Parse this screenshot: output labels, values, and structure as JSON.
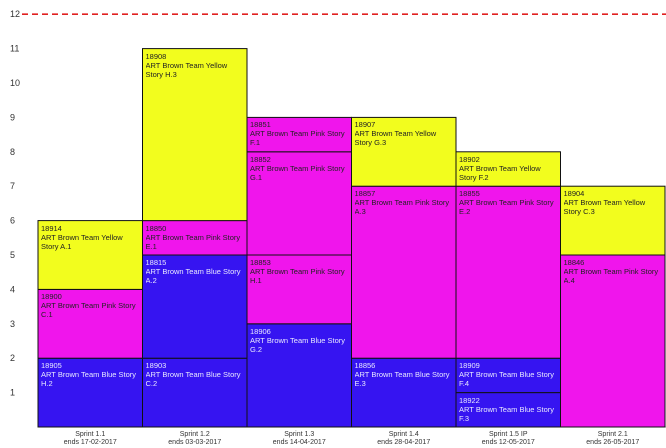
{
  "chart_data": {
    "type": "bar",
    "stacked": true,
    "ylim": [
      0,
      12
    ],
    "yticks": [
      "1",
      "2",
      "3",
      "4",
      "5",
      "6",
      "7",
      "8",
      "9",
      "10",
      "11",
      "12"
    ],
    "reference_line": {
      "value": 12,
      "color": "#e02020",
      "style": "dashed"
    },
    "colors": {
      "yellow": "#f2fd1e",
      "pink": "#f015ec",
      "blue": "#3614f1"
    },
    "categories": [
      {
        "label": "Sprint 1.1",
        "sublabel": "ends 17-02-2017",
        "segments": [
          {
            "id": "18905",
            "text": "ART Brown Team Blue Story H.2",
            "value": 2,
            "color": "blue"
          },
          {
            "id": "18900",
            "text": "ART Brown Team Pink Story C.1",
            "value": 2,
            "color": "pink"
          },
          {
            "id": "18914",
            "text": "ART Brown Team Yellow Story A.1",
            "value": 2,
            "color": "yellow"
          }
        ]
      },
      {
        "label": "Sprint 1.2",
        "sublabel": "ends 03-03-2017",
        "segments": [
          {
            "id": "18903",
            "text": "ART Brown Team Blue Story C.2",
            "value": 2,
            "color": "blue"
          },
          {
            "id": "18815",
            "text": "ART Brown Team Blue Story A.2",
            "value": 3,
            "color": "blue"
          },
          {
            "id": "18850",
            "text": "ART Brown Team Pink Story E.1",
            "value": 1,
            "color": "pink"
          },
          {
            "id": "18908",
            "text": "ART Brown Team Yellow Story H.3",
            "value": 5,
            "color": "yellow"
          }
        ]
      },
      {
        "label": "Sprint 1.3",
        "sublabel": "ends 14-04-2017",
        "segments": [
          {
            "id": "18906",
            "text": "ART Brown Team Blue Story G.2",
            "value": 3,
            "color": "blue"
          },
          {
            "id": "18853",
            "text": "ART Brown Team Pink Story H.1",
            "value": 2,
            "color": "pink"
          },
          {
            "id": "18852",
            "text": "ART Brown Team Pink Story G.1",
            "value": 3,
            "color": "pink"
          },
          {
            "id": "18851",
            "text": "ART Brown Team Pink Story F.1",
            "value": 1,
            "color": "pink"
          }
        ]
      },
      {
        "label": "Sprint 1.4",
        "sublabel": "ends 28-04-2017",
        "segments": [
          {
            "id": "18856",
            "text": "ART Brown Team Blue Story E.3",
            "value": 2,
            "color": "blue"
          },
          {
            "id": "18857",
            "text": "ART Brown Team Pink Story A.3",
            "value": 5,
            "color": "pink"
          },
          {
            "id": "18907",
            "text": "ART Brown Team Yellow Story G.3",
            "value": 2,
            "color": "yellow"
          }
        ]
      },
      {
        "label": "Sprint 1.5 IP",
        "sublabel": "ends 12-05-2017",
        "segments": [
          {
            "id": "18922",
            "text": "ART Brown Team Blue Story F.3",
            "value": 1,
            "color": "blue"
          },
          {
            "id": "18909",
            "text": "ART Brown Team Blue Story F.4",
            "value": 1,
            "color": "blue"
          },
          {
            "id": "18855",
            "text": "ART Brown Team Pink Story E.2",
            "value": 5,
            "color": "pink"
          },
          {
            "id": "18902",
            "text": "ART Brown Team Yellow Story F.2",
            "value": 1,
            "color": "yellow"
          }
        ]
      },
      {
        "label": "Sprint 2.1",
        "sublabel": "ends 26-05-2017",
        "segments": [
          {
            "id": "18846",
            "text": "ART Brown Team Pink Story A.4",
            "value": 5,
            "color": "pink"
          },
          {
            "id": "18904",
            "text": "ART Brown Team Yellow Story C.3",
            "value": 2,
            "color": "yellow"
          }
        ]
      }
    ]
  }
}
